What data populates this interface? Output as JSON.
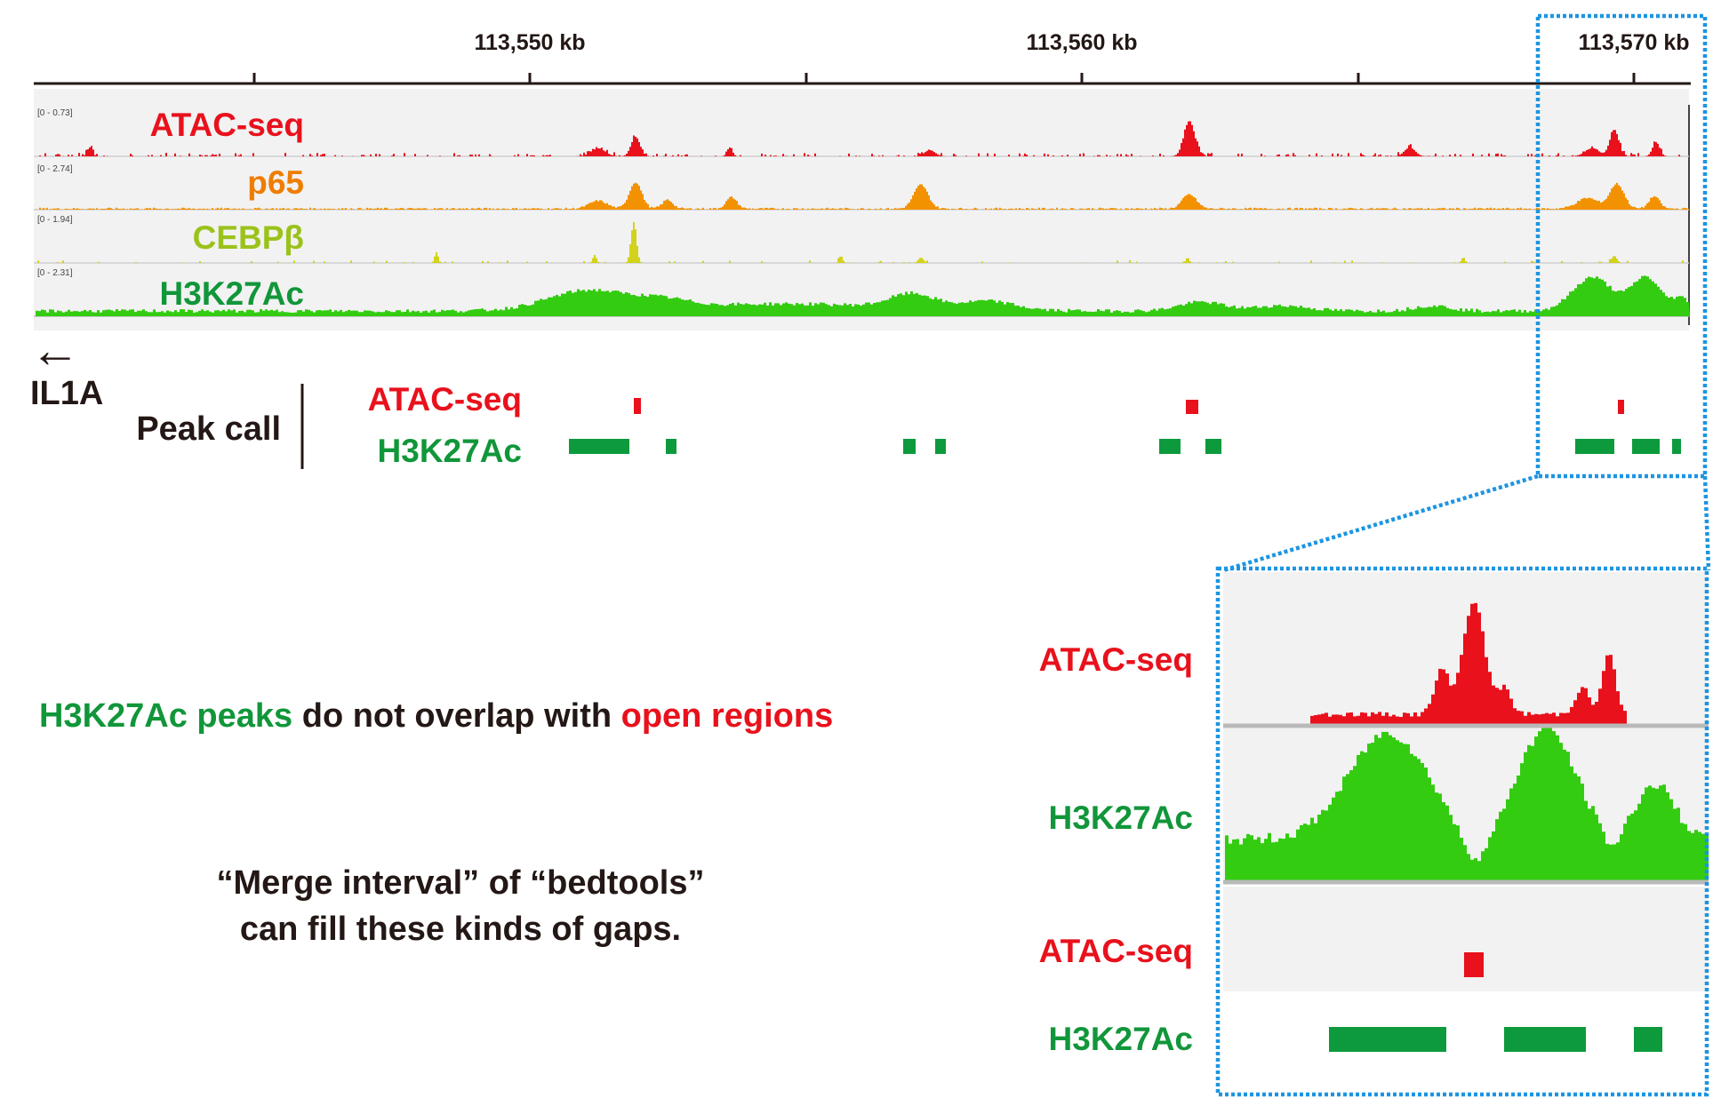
{
  "ruler": {
    "positions": [
      "113,550 kb",
      "113,560 kb",
      "113,570 kb"
    ]
  },
  "tracks": [
    {
      "name": "ATAC-seq",
      "range": "[0 - 0.73]",
      "color": "#e8111c"
    },
    {
      "name": "p65",
      "range": "[0 - 2.74]",
      "color": "#ee7d00"
    },
    {
      "name": "CEBPβ",
      "range": "[0 - 1.94]",
      "color": "#9bc21b"
    },
    {
      "name": "H3K27Ac",
      "range": "[0 - 2.31]",
      "color": "#11963a"
    }
  ],
  "gene": {
    "name": "IL1A",
    "arrow": "←"
  },
  "peak_call": {
    "label": "Peak call",
    "tracks": [
      {
        "name": "ATAC-seq",
        "color": "#e8111c"
      },
      {
        "name": "H3K27Ac",
        "color": "#11963a"
      }
    ]
  },
  "annotation": {
    "part1": "H3K27Ac peaks",
    "part2": "do not overlap with",
    "part3": "open regions"
  },
  "note": {
    "line1": "“Merge interval” of “bedtools”",
    "line2": "can fill these kinds of gaps."
  },
  "zoom": {
    "labels": [
      "ATAC-seq",
      "H3K27Ac",
      "ATAC-seq",
      "H3K27Ac"
    ]
  },
  "colors": {
    "atac": "#e8111c",
    "p65": "#f39200",
    "cebpb_fill": "#d2d21a",
    "h3k27ac_fill": "#33cc11",
    "peak_green": "#0c9a3d",
    "highlight": "#1c95e1",
    "text_dark": "#231815"
  }
}
